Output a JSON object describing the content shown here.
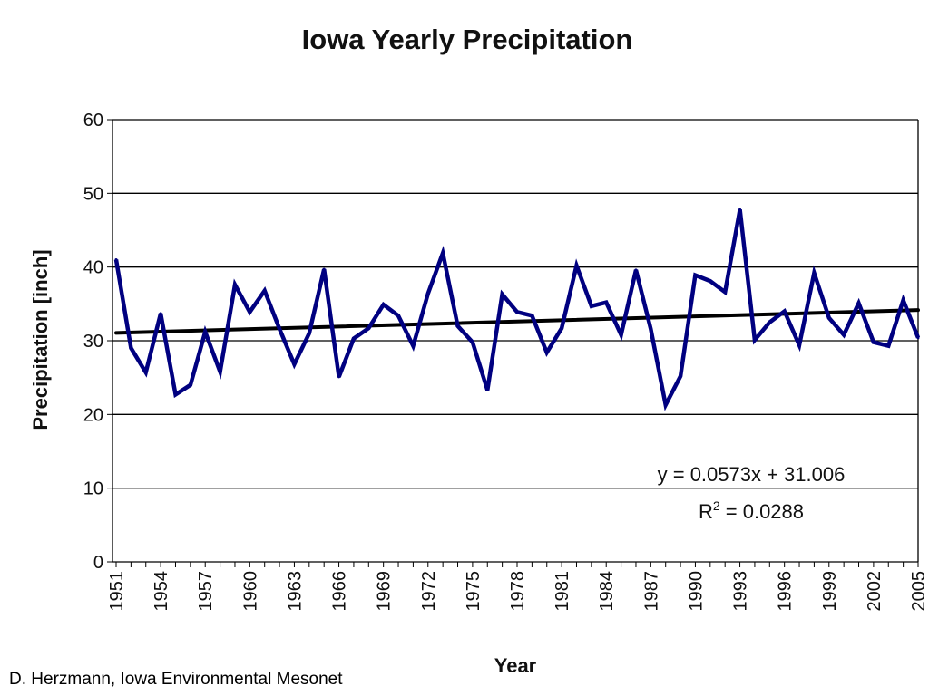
{
  "chart_data": {
    "type": "line",
    "title": "Iowa Yearly Precipitation",
    "xlabel": "Year",
    "ylabel": "Precipitation [inch]",
    "ylim": [
      0,
      60
    ],
    "y_ticks": [
      "0",
      "10",
      "20",
      "30",
      "40",
      "50",
      "60"
    ],
    "x_tick_labels": [
      "1951",
      "1954",
      "1957",
      "1960",
      "1963",
      "1966",
      "1969",
      "1972",
      "1975",
      "1978",
      "1981",
      "1984",
      "1987",
      "1990",
      "1993",
      "1996",
      "1999",
      "2002",
      "2005"
    ],
    "grid": "horizontal",
    "series": [
      {
        "color": "#000080",
        "x": [
          1951,
          1952,
          1953,
          1954,
          1955,
          1956,
          1957,
          1958,
          1959,
          1960,
          1961,
          1962,
          1963,
          1964,
          1965,
          1966,
          1967,
          1968,
          1969,
          1970,
          1971,
          1972,
          1973,
          1974,
          1975,
          1976,
          1977,
          1978,
          1979,
          1980,
          1981,
          1982,
          1983,
          1984,
          1985,
          1986,
          1987,
          1988,
          1989,
          1990,
          1991,
          1992,
          1993,
          1994,
          1995,
          1996,
          1997,
          1998,
          1999,
          2000,
          2001,
          2002,
          2003,
          2004,
          2005
        ],
        "values": [
          41.0,
          29.0,
          25.7,
          33.7,
          22.7,
          24.0,
          31.2,
          25.8,
          37.6,
          33.9,
          36.8,
          31.6,
          26.8,
          31.0,
          39.7,
          25.1,
          30.3,
          31.7,
          34.9,
          33.4,
          29.3,
          36.4,
          41.9,
          32.0,
          29.8,
          23.3,
          36.3,
          33.9,
          33.4,
          28.4,
          31.7,
          40.2,
          34.7,
          35.2,
          30.8,
          39.6,
          31.6,
          21.3,
          25.2,
          38.9,
          38.1,
          36.6,
          47.8,
          30.1,
          32.5,
          34.0,
          29.4,
          39.2,
          33.1,
          30.8,
          35.1,
          29.8,
          29.3,
          35.5,
          30.4
        ]
      },
      {
        "color": "#000000",
        "x": [
          1951,
          2005
        ],
        "values": [
          31.06,
          34.16
        ]
      }
    ],
    "annotations": {
      "equation": "y = 0.0573x + 31.006",
      "r2_prefix": "R",
      "r2_exponent": "2",
      "r2_value": " = 0.0288"
    }
  },
  "credit": "D. Herzmann, Iowa Environmental Mesonet"
}
